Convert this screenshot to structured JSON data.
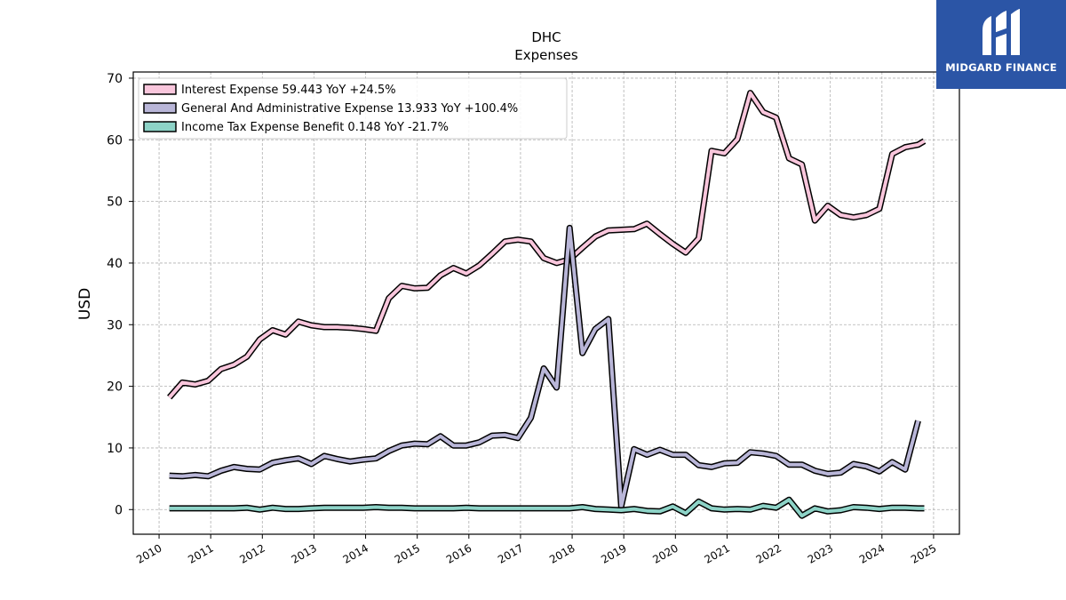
{
  "brand": {
    "name": "MIDGARD FINANCE",
    "bg_color": "#2b55a6"
  },
  "chart_data": {
    "type": "line",
    "title": "DHC",
    "subtitle": "Expenses",
    "xlabel": "",
    "ylabel": "USD",
    "xlim": [
      2009.5,
      2025.5
    ],
    "ylim": [
      -4,
      71
    ],
    "yticks": [
      0,
      10,
      20,
      30,
      40,
      50,
      60,
      70
    ],
    "xticks": [
      "2010",
      "2011",
      "2012",
      "2013",
      "2014",
      "2015",
      "2016",
      "2017",
      "2018",
      "2019",
      "2020",
      "2021",
      "2022",
      "2023",
      "2024",
      "2025"
    ],
    "grid": true,
    "legend_position": "top-left",
    "series": [
      {
        "name": "Interest Expense",
        "legend": "Interest Expense  59.443 YoY +24.5%",
        "color": "#f9c6dc",
        "points": [
          [
            2010.2,
            18.2
          ],
          [
            2010.45,
            20.6
          ],
          [
            2010.7,
            20.3
          ],
          [
            2010.95,
            20.9
          ],
          [
            2011.2,
            22.8
          ],
          [
            2011.45,
            23.5
          ],
          [
            2011.7,
            24.8
          ],
          [
            2011.95,
            27.6
          ],
          [
            2012.2,
            29.1
          ],
          [
            2012.45,
            28.4
          ],
          [
            2012.7,
            30.5
          ],
          [
            2012.95,
            29.9
          ],
          [
            2013.2,
            29.6
          ],
          [
            2013.45,
            29.6
          ],
          [
            2013.7,
            29.5
          ],
          [
            2013.95,
            29.3
          ],
          [
            2014.2,
            29.0
          ],
          [
            2014.45,
            34.3
          ],
          [
            2014.7,
            36.3
          ],
          [
            2014.95,
            35.9
          ],
          [
            2015.2,
            36.0
          ],
          [
            2015.45,
            38.0
          ],
          [
            2015.7,
            39.2
          ],
          [
            2015.95,
            38.3
          ],
          [
            2016.2,
            39.6
          ],
          [
            2016.45,
            41.5
          ],
          [
            2016.7,
            43.5
          ],
          [
            2016.95,
            43.8
          ],
          [
            2017.2,
            43.5
          ],
          [
            2017.45,
            40.8
          ],
          [
            2017.7,
            40.0
          ],
          [
            2017.95,
            40.6
          ],
          [
            2018.2,
            42.5
          ],
          [
            2018.45,
            44.3
          ],
          [
            2018.7,
            45.3
          ],
          [
            2018.95,
            45.4
          ],
          [
            2019.2,
            45.5
          ],
          [
            2019.45,
            46.4
          ],
          [
            2019.7,
            44.7
          ],
          [
            2019.95,
            43.1
          ],
          [
            2020.2,
            41.7
          ],
          [
            2020.45,
            44.0
          ],
          [
            2020.7,
            58.2
          ],
          [
            2020.95,
            57.8
          ],
          [
            2021.2,
            60.1
          ],
          [
            2021.45,
            67.6
          ],
          [
            2021.7,
            64.5
          ],
          [
            2021.95,
            63.6
          ],
          [
            2022.2,
            57.0
          ],
          [
            2022.45,
            56.0
          ],
          [
            2022.7,
            46.9
          ],
          [
            2022.95,
            49.3
          ],
          [
            2023.2,
            47.8
          ],
          [
            2023.45,
            47.4
          ],
          [
            2023.7,
            47.8
          ],
          [
            2023.95,
            48.8
          ],
          [
            2024.2,
            57.7
          ],
          [
            2024.45,
            58.8
          ],
          [
            2024.7,
            59.2
          ],
          [
            2024.82,
            59.8
          ]
        ]
      },
      {
        "name": "General And Administrative Expense",
        "legend": "General And Administrative Expense  13.933 YoY +100.4%",
        "color": "#b9b6d8",
        "points": [
          [
            2010.2,
            5.5
          ],
          [
            2010.45,
            5.4
          ],
          [
            2010.7,
            5.6
          ],
          [
            2010.95,
            5.4
          ],
          [
            2011.2,
            6.3
          ],
          [
            2011.45,
            6.9
          ],
          [
            2011.7,
            6.6
          ],
          [
            2011.95,
            6.5
          ],
          [
            2012.2,
            7.6
          ],
          [
            2012.45,
            8.0
          ],
          [
            2012.7,
            8.3
          ],
          [
            2012.95,
            7.4
          ],
          [
            2013.2,
            8.7
          ],
          [
            2013.45,
            8.2
          ],
          [
            2013.7,
            7.8
          ],
          [
            2013.95,
            8.1
          ],
          [
            2014.2,
            8.3
          ],
          [
            2014.45,
            9.5
          ],
          [
            2014.7,
            10.4
          ],
          [
            2014.95,
            10.7
          ],
          [
            2015.2,
            10.6
          ],
          [
            2015.45,
            11.9
          ],
          [
            2015.7,
            10.4
          ],
          [
            2015.95,
            10.4
          ],
          [
            2016.2,
            10.9
          ],
          [
            2016.45,
            12.0
          ],
          [
            2016.7,
            12.1
          ],
          [
            2016.95,
            11.6
          ],
          [
            2017.2,
            14.9
          ],
          [
            2017.45,
            22.9
          ],
          [
            2017.7,
            19.8
          ],
          [
            2017.95,
            45.7
          ],
          [
            2018.2,
            25.4
          ],
          [
            2018.45,
            29.3
          ],
          [
            2018.7,
            30.9
          ],
          [
            2018.95,
            0.5
          ],
          [
            2019.2,
            9.8
          ],
          [
            2019.45,
            8.9
          ],
          [
            2019.7,
            9.7
          ],
          [
            2019.95,
            8.9
          ],
          [
            2020.2,
            8.9
          ],
          [
            2020.45,
            7.2
          ],
          [
            2020.7,
            6.9
          ],
          [
            2020.95,
            7.5
          ],
          [
            2021.2,
            7.6
          ],
          [
            2021.45,
            9.3
          ],
          [
            2021.7,
            9.1
          ],
          [
            2021.95,
            8.7
          ],
          [
            2022.2,
            7.3
          ],
          [
            2022.45,
            7.3
          ],
          [
            2022.7,
            6.3
          ],
          [
            2022.95,
            5.8
          ],
          [
            2023.2,
            6.0
          ],
          [
            2023.45,
            7.4
          ],
          [
            2023.7,
            7.0
          ],
          [
            2023.95,
            6.2
          ],
          [
            2024.2,
            7.7
          ],
          [
            2024.45,
            6.5
          ],
          [
            2024.7,
            14.4
          ]
        ]
      },
      {
        "name": "Income Tax Expense Benefit",
        "legend": "Income Tax Expense Benefit  0.148 YoY -21.7%",
        "color": "#8dd3c7",
        "points": [
          [
            2010.2,
            0.2
          ],
          [
            2010.45,
            0.2
          ],
          [
            2010.7,
            0.2
          ],
          [
            2010.95,
            0.2
          ],
          [
            2011.2,
            0.2
          ],
          [
            2011.45,
            0.2
          ],
          [
            2011.7,
            0.3
          ],
          [
            2011.95,
            0.0
          ],
          [
            2012.2,
            0.3
          ],
          [
            2012.45,
            0.1
          ],
          [
            2012.7,
            0.1
          ],
          [
            2012.95,
            0.2
          ],
          [
            2013.2,
            0.3
          ],
          [
            2013.45,
            0.3
          ],
          [
            2013.7,
            0.3
          ],
          [
            2013.95,
            0.3
          ],
          [
            2014.2,
            0.4
          ],
          [
            2014.45,
            0.3
          ],
          [
            2014.7,
            0.3
          ],
          [
            2014.95,
            0.2
          ],
          [
            2015.2,
            0.2
          ],
          [
            2015.45,
            0.2
          ],
          [
            2015.7,
            0.2
          ],
          [
            2015.95,
            0.3
          ],
          [
            2016.2,
            0.2
          ],
          [
            2016.45,
            0.2
          ],
          [
            2016.7,
            0.2
          ],
          [
            2016.95,
            0.2
          ],
          [
            2017.2,
            0.2
          ],
          [
            2017.45,
            0.2
          ],
          [
            2017.7,
            0.2
          ],
          [
            2017.95,
            0.2
          ],
          [
            2018.2,
            0.4
          ],
          [
            2018.45,
            0.1
          ],
          [
            2018.7,
            0.0
          ],
          [
            2018.95,
            -0.1
          ],
          [
            2019.2,
            0.1
          ],
          [
            2019.45,
            -0.2
          ],
          [
            2019.7,
            -0.3
          ],
          [
            2019.95,
            0.5
          ],
          [
            2020.2,
            -0.6
          ],
          [
            2020.45,
            1.3
          ],
          [
            2020.7,
            0.2
          ],
          [
            2020.95,
            0.0
          ],
          [
            2021.2,
            0.1
          ],
          [
            2021.45,
            0.0
          ],
          [
            2021.7,
            0.6
          ],
          [
            2021.95,
            0.3
          ],
          [
            2022.2,
            1.6
          ],
          [
            2022.45,
            -1.0
          ],
          [
            2022.7,
            0.2
          ],
          [
            2022.95,
            -0.3
          ],
          [
            2023.2,
            -0.1
          ],
          [
            2023.45,
            0.4
          ],
          [
            2023.7,
            0.3
          ],
          [
            2023.95,
            0.1
          ],
          [
            2024.2,
            0.3
          ],
          [
            2024.45,
            0.3
          ],
          [
            2024.7,
            0.2
          ],
          [
            2024.82,
            0.2
          ]
        ]
      }
    ]
  }
}
